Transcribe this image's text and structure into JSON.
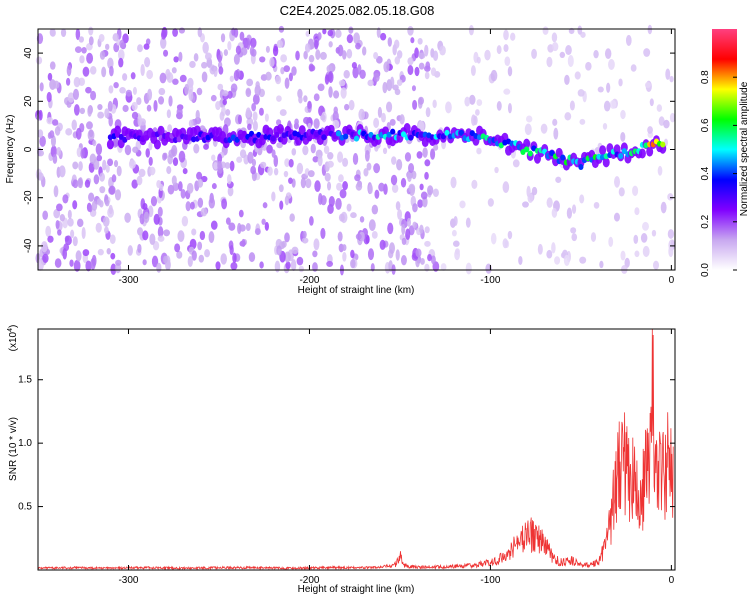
{
  "title": "C2E4.2025.082.05.18.G08",
  "chart_data": [
    {
      "type": "heatmap",
      "xlabel": "Height of straight line (km)",
      "ylabel": "Frequency (Hz)",
      "xlim": [
        -350,
        2
      ],
      "ylim": [
        -50,
        50
      ],
      "xticks": [
        -300,
        -200,
        -100,
        0
      ],
      "yticks": [
        -40,
        -20,
        0,
        20,
        40
      ],
      "colorbar": {
        "label": "Normalized spectral amplitude",
        "range": [
          0,
          1
        ],
        "ticks": [
          "0.0",
          "0.2",
          "0.4",
          "0.6",
          "0.8"
        ],
        "tick_values": [
          0.0,
          0.2,
          0.4,
          0.6,
          0.8
        ],
        "colormap": [
          "#ffffff",
          "#c8a8f0",
          "#8000ff",
          "#0000ff",
          "#00ffff",
          "#00ff00",
          "#ffff00",
          "#ff0000",
          "#ff4080"
        ]
      },
      "ridge": [
        {
          "x": -310,
          "y": 5,
          "amp": 0.35
        },
        {
          "x": -290,
          "y": 5,
          "amp": 0.25
        },
        {
          "x": -260,
          "y": 5,
          "amp": 0.3
        },
        {
          "x": -240,
          "y": 5,
          "amp": 0.35
        },
        {
          "x": -200,
          "y": 6,
          "amp": 0.3
        },
        {
          "x": -180,
          "y": 6,
          "amp": 0.4
        },
        {
          "x": -160,
          "y": 6,
          "amp": 0.45
        },
        {
          "x": -140,
          "y": 6,
          "amp": 0.4
        },
        {
          "x": -120,
          "y": 6,
          "amp": 0.45
        },
        {
          "x": -100,
          "y": 5,
          "amp": 0.5
        },
        {
          "x": -90,
          "y": 2,
          "amp": 0.5
        },
        {
          "x": -80,
          "y": 0,
          "amp": 0.5
        },
        {
          "x": -70,
          "y": -2,
          "amp": 0.55
        },
        {
          "x": -60,
          "y": -4,
          "amp": 0.55
        },
        {
          "x": -50,
          "y": -6,
          "amp": 0.5
        },
        {
          "x": -40,
          "y": -3,
          "amp": 0.55
        },
        {
          "x": -30,
          "y": -2,
          "amp": 0.45
        },
        {
          "x": -20,
          "y": 0,
          "amp": 0.55
        },
        {
          "x": -10,
          "y": 2,
          "amp": 0.95
        },
        {
          "x": -3,
          "y": 2,
          "amp": 0.7
        }
      ]
    },
    {
      "type": "line",
      "xlabel": "Height of straight line (km)",
      "ylabel": "SNR (10 * v/v)",
      "multiplier": "(x10",
      "multiplier_exp": "4",
      "multiplier_close": ")",
      "xlim": [
        -350,
        2
      ],
      "ylim": [
        0,
        1.9
      ],
      "xticks": [
        -300,
        -200,
        -100,
        0
      ],
      "yticks": [
        "0.5",
        "1.0",
        "1.5"
      ],
      "ytick_values": [
        0.5,
        1.0,
        1.5
      ],
      "series": [
        {
          "color": "#ee3333",
          "x": [
            -350,
            -330,
            -310,
            -290,
            -270,
            -250,
            -230,
            -210,
            -190,
            -170,
            -160,
            -152,
            -150,
            -148,
            -140,
            -130,
            -120,
            -110,
            -100,
            -95,
            -90,
            -85,
            -80,
            -75,
            -70,
            -65,
            -60,
            -55,
            -50,
            -45,
            -40,
            -36,
            -33,
            -30,
            -27,
            -24,
            -21,
            -18,
            -15,
            -12,
            -10,
            -8,
            -6,
            -4,
            -2,
            0,
            1
          ],
          "y": [
            0.02,
            0.025,
            0.02,
            0.025,
            0.02,
            0.025,
            0.025,
            0.02,
            0.025,
            0.025,
            0.03,
            0.06,
            0.17,
            0.05,
            0.03,
            0.035,
            0.04,
            0.05,
            0.08,
            0.12,
            0.2,
            0.3,
            0.36,
            0.4,
            0.28,
            0.12,
            0.08,
            0.1,
            0.06,
            0.05,
            0.1,
            0.3,
            0.6,
            1.05,
            1.3,
            1.0,
            0.95,
            0.75,
            0.9,
            1.35,
            1.9,
            1.1,
            1.2,
            1.0,
            1.35,
            1.05,
            0.95
          ]
        }
      ]
    }
  ]
}
